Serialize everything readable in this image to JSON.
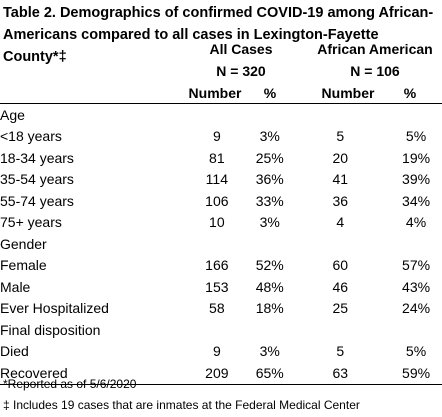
{
  "title": "Table 2. Demographics of confirmed COVID-19 among African-Americans compared to all cases in Lexington-Fayette County*‡",
  "groups": [
    {
      "name": "All Cases",
      "n": "N = 320"
    },
    {
      "name": "African American",
      "n": "N = 106"
    }
  ],
  "col_headers": [
    "Number",
    "%",
    "Number",
    "%"
  ],
  "rows": [
    {
      "label": "Age",
      "indent": false,
      "values": [
        "",
        "",
        "",
        ""
      ]
    },
    {
      "label": "<18 years",
      "indent": true,
      "values": [
        "9",
        "3%",
        "5",
        "5%"
      ]
    },
    {
      "label": "18-34 years",
      "indent": true,
      "values": [
        "81",
        "25%",
        "20",
        "19%"
      ]
    },
    {
      "label": "35-54 years",
      "indent": true,
      "values": [
        "114",
        "36%",
        "41",
        "39%"
      ]
    },
    {
      "label": "55-74 years",
      "indent": true,
      "values": [
        "106",
        "33%",
        "36",
        "34%"
      ]
    },
    {
      "label": "75+ years",
      "indent": true,
      "values": [
        "10",
        "3%",
        "4",
        "4%"
      ]
    },
    {
      "label": "Gender",
      "indent": false,
      "values": [
        "",
        "",
        "",
        ""
      ]
    },
    {
      "label": "Female",
      "indent": true,
      "values": [
        "166",
        "52%",
        "60",
        "57%"
      ]
    },
    {
      "label": "Male",
      "indent": true,
      "values": [
        "153",
        "48%",
        "46",
        "43%"
      ]
    },
    {
      "label": "Ever Hospitalized",
      "indent": false,
      "values": [
        "58",
        "18%",
        "25",
        "24%"
      ]
    },
    {
      "label": "Final disposition",
      "indent": false,
      "values": [
        "",
        "",
        "",
        ""
      ]
    },
    {
      "label": "Died",
      "indent": true,
      "values": [
        "9",
        "3%",
        "5",
        "5%"
      ]
    },
    {
      "label": "Recovered",
      "indent": true,
      "values": [
        "209",
        "65%",
        "63",
        "59%"
      ]
    }
  ],
  "footnotes": [
    "*Reported as of 5/6/2020",
    "‡ Includes 19 cases that are inmates at the Federal Medical Center"
  ]
}
